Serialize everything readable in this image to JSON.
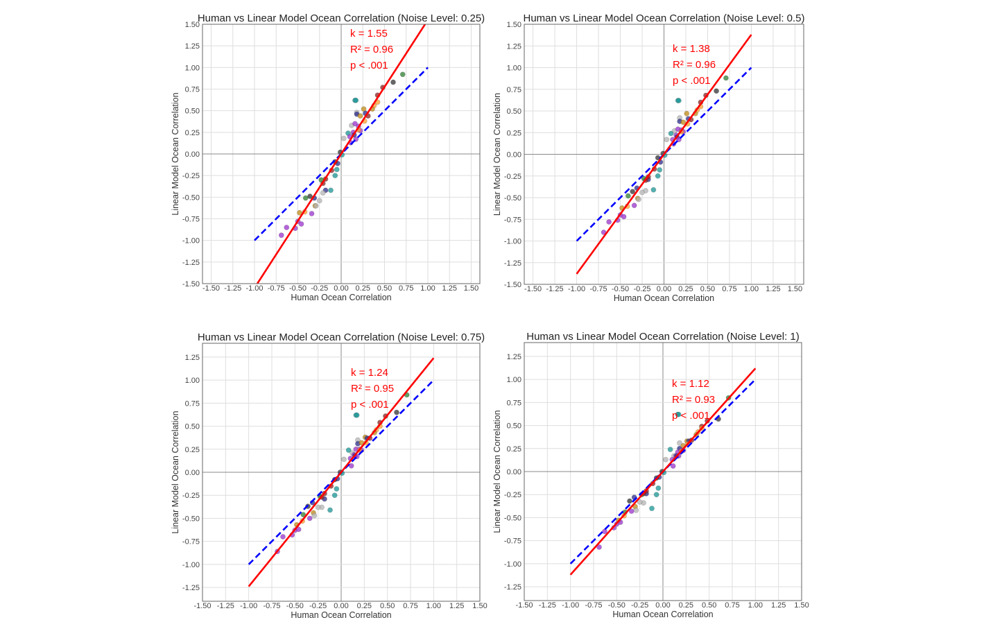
{
  "palette": {
    "purple": "#9932CC",
    "orange": "#FF9F2E",
    "goldenrod": "#C08A14",
    "teal": "#1A9696",
    "gray": "#B4B4B4",
    "navy": "#2A2A8A",
    "maroon": "#8B2020",
    "green": "#2E7D32",
    "black": "#333333",
    "fit": "#FF0000",
    "identity": "#0000FF"
  },
  "chart_data": [
    {
      "type": "scatter",
      "title": "Human vs Linear Model Ocean Correlation (Noise Level: 0.25)",
      "xlabel": "Human Ocean Correlation",
      "ylabel": "Linear Model Ocean Correlation",
      "xlim": [
        -1.6,
        1.6
      ],
      "ylim": [
        -1.5,
        1.5
      ],
      "grid": true,
      "xticks": [
        "-1.50",
        "-1.25",
        "-1.00",
        "-0.75",
        "-0.50",
        "-0.25",
        "0.00",
        "0.25",
        "0.50",
        "0.75",
        "1.00",
        "1.25",
        "1.50"
      ],
      "yticks": [
        "-1.50",
        "-1.25",
        "-1.00",
        "-0.75",
        "-0.50",
        "-0.25",
        "0.00",
        "0.25",
        "0.50",
        "0.75",
        "1.00",
        "1.25",
        "1.50"
      ],
      "annotations": [
        "k = 1.55",
        "R² = 0.96",
        "p < .001"
      ],
      "fit_slope": 1.55,
      "x": [
        0.71,
        0.6,
        0.48,
        0.42,
        0.42,
        0.38,
        0.36,
        0.16,
        0.17,
        0.18,
        0.18,
        0.26,
        0.22,
        0.28,
        0.31,
        0.27,
        0.12,
        0.16,
        0.2,
        0.22,
        0.2,
        0.08,
        0.14,
        0.15,
        0.1,
        0.03,
        0.17,
        0.11,
        -0.01,
        0.01,
        -0.04,
        -0.07,
        -0.05,
        -0.07,
        -0.11,
        -0.12,
        -0.18,
        -0.21,
        -0.18,
        -0.21,
        -0.23,
        -0.25,
        -0.3,
        -0.29,
        -0.31,
        -0.36,
        -0.41,
        -0.34,
        -0.42,
        -0.48,
        -0.5,
        -0.46,
        -0.53,
        -0.63,
        -0.69
      ],
      "y": [
        0.92,
        0.83,
        0.77,
        0.68,
        0.6,
        0.56,
        0.52,
        0.62,
        0.62,
        0.48,
        0.46,
        0.52,
        0.44,
        0.47,
        0.44,
        0.38,
        0.33,
        0.35,
        0.32,
        0.27,
        0.28,
        0.24,
        0.25,
        0.22,
        0.2,
        0.18,
        0.17,
        0.13,
        0.02,
        -0.01,
        -0.11,
        -0.09,
        -0.18,
        -0.25,
        -0.19,
        -0.42,
        -0.42,
        -0.45,
        -0.29,
        -0.34,
        -0.3,
        -0.54,
        -0.6,
        -0.6,
        -0.51,
        -0.49,
        -0.51,
        -0.69,
        -0.67,
        -0.68,
        -0.78,
        -0.81,
        -0.86,
        -0.85,
        -0.94
      ],
      "colors": [
        "green",
        "black",
        "maroon",
        "maroon",
        "orange",
        "orange",
        "goldenrod",
        "teal",
        "teal",
        "gray",
        "navy",
        "goldenrod",
        "goldenrod",
        "navy",
        "maroon",
        "orange",
        "gray",
        "purple",
        "purple",
        "purple",
        "orange",
        "teal",
        "purple",
        "navy",
        "purple",
        "gray",
        "purple",
        "purple",
        "black",
        "teal",
        "navy",
        "black",
        "teal",
        "teal",
        "maroon",
        "teal",
        "navy",
        "gray",
        "maroon",
        "maroon",
        "green",
        "gray",
        "goldenrod",
        "gray",
        "navy",
        "black",
        "green",
        "purple",
        "orange",
        "goldenrod",
        "purple",
        "purple",
        "purple",
        "purple",
        "purple"
      ]
    },
    {
      "type": "scatter",
      "title": "Human vs Linear Model Ocean Correlation (Noise Level: 0.5)",
      "xlabel": "Human Ocean Correlation",
      "ylabel": "Linear Model Ocean Correlation",
      "xlim": [
        -1.6,
        1.6
      ],
      "ylim": [
        -1.5,
        1.5
      ],
      "grid": true,
      "xticks": [
        "-1.50",
        "-1.25",
        "-1.00",
        "-0.75",
        "-0.50",
        "-0.25",
        "0.00",
        "0.25",
        "0.50",
        "0.75",
        "1.00",
        "1.25",
        "1.50"
      ],
      "yticks": [
        "-1.50",
        "-1.25",
        "-1.00",
        "-0.75",
        "-0.50",
        "-0.25",
        "0.00",
        "0.25",
        "0.50",
        "0.75",
        "1.00",
        "1.25",
        "1.50"
      ],
      "annotations": [
        "k = 1.38",
        "R² = 0.96",
        "p < .001"
      ],
      "fit_slope": 1.38,
      "x": [
        0.71,
        0.6,
        0.48,
        0.42,
        0.42,
        0.38,
        0.36,
        0.16,
        0.17,
        0.18,
        0.18,
        0.26,
        0.22,
        0.28,
        0.31,
        0.27,
        0.12,
        0.16,
        0.2,
        0.22,
        0.2,
        0.08,
        0.14,
        0.15,
        0.1,
        0.03,
        0.17,
        0.11,
        -0.01,
        0.01,
        -0.04,
        -0.07,
        -0.05,
        -0.07,
        -0.11,
        -0.12,
        -0.18,
        -0.21,
        -0.18,
        -0.21,
        -0.23,
        -0.25,
        -0.3,
        -0.29,
        -0.31,
        -0.36,
        -0.41,
        -0.34,
        -0.42,
        -0.48,
        -0.5,
        -0.46,
        -0.53,
        -0.63,
        -0.69
      ],
      "y": [
        0.88,
        0.73,
        0.68,
        0.6,
        0.55,
        0.51,
        0.47,
        0.62,
        0.62,
        0.42,
        0.38,
        0.47,
        0.37,
        0.41,
        0.4,
        0.35,
        0.27,
        0.29,
        0.28,
        0.26,
        0.26,
        0.24,
        0.22,
        0.2,
        0.17,
        0.17,
        0.17,
        0.12,
        0.01,
        -0.01,
        -0.09,
        -0.04,
        -0.18,
        -0.25,
        -0.17,
        -0.41,
        -0.29,
        -0.42,
        -0.26,
        -0.3,
        -0.28,
        -0.44,
        -0.51,
        -0.52,
        -0.39,
        -0.43,
        -0.48,
        -0.59,
        -0.6,
        -0.62,
        -0.7,
        -0.72,
        -0.76,
        -0.78,
        -0.9
      ],
      "colors": [
        "green",
        "black",
        "maroon",
        "maroon",
        "orange",
        "orange",
        "goldenrod",
        "teal",
        "teal",
        "gray",
        "navy",
        "goldenrod",
        "goldenrod",
        "navy",
        "maroon",
        "orange",
        "gray",
        "purple",
        "purple",
        "purple",
        "orange",
        "teal",
        "purple",
        "navy",
        "purple",
        "gray",
        "purple",
        "purple",
        "black",
        "teal",
        "navy",
        "black",
        "teal",
        "teal",
        "maroon",
        "teal",
        "navy",
        "gray",
        "maroon",
        "maroon",
        "green",
        "gray",
        "goldenrod",
        "gray",
        "navy",
        "black",
        "green",
        "purple",
        "orange",
        "goldenrod",
        "purple",
        "purple",
        "purple",
        "purple",
        "purple"
      ]
    },
    {
      "type": "scatter",
      "title": "Human vs Linear Model Ocean Correlation (Noise Level: 0.75)",
      "xlabel": "Human Ocean Correlation",
      "ylabel": "Linear Model Ocean Correlation",
      "xlim": [
        -1.5,
        1.5
      ],
      "ylim": [
        -1.4,
        1.4
      ],
      "grid": true,
      "xticks": [
        "-1.50",
        "-1.25",
        "-1.00",
        "-0.75",
        "-0.50",
        "-0.25",
        "0.00",
        "0.25",
        "0.50",
        "0.75",
        "1.00",
        "1.25",
        "1.50"
      ],
      "yticks": [
        "-1.25",
        "-1.00",
        "-0.75",
        "-0.50",
        "-0.25",
        "0.00",
        "0.25",
        "0.50",
        "0.75",
        "1.00",
        "1.25"
      ],
      "annotations": [
        "k = 1.24",
        "R² = 0.95",
        "p < .001"
      ],
      "fit_slope": 1.24,
      "x": [
        0.71,
        0.6,
        0.48,
        0.42,
        0.42,
        0.38,
        0.36,
        0.16,
        0.17,
        0.18,
        0.18,
        0.26,
        0.22,
        0.28,
        0.31,
        0.27,
        0.12,
        0.16,
        0.2,
        0.22,
        0.2,
        0.08,
        0.14,
        0.15,
        0.1,
        0.03,
        0.17,
        0.11,
        -0.01,
        0.01,
        -0.04,
        -0.07,
        -0.05,
        -0.07,
        -0.11,
        -0.12,
        -0.18,
        -0.21,
        -0.18,
        -0.21,
        -0.23,
        -0.25,
        -0.3,
        -0.29,
        -0.31,
        -0.36,
        -0.41,
        -0.34,
        -0.42,
        -0.48,
        -0.5,
        -0.46,
        -0.53,
        -0.63,
        -0.69
      ],
      "y": [
        0.84,
        0.65,
        0.61,
        0.54,
        0.5,
        0.46,
        0.43,
        0.62,
        0.62,
        0.35,
        0.31,
        0.38,
        0.32,
        0.37,
        0.37,
        0.32,
        0.21,
        0.25,
        0.25,
        0.24,
        0.24,
        0.24,
        0.19,
        0.18,
        0.15,
        0.14,
        0.17,
        0.07,
        0.0,
        -0.01,
        -0.07,
        -0.08,
        -0.18,
        -0.25,
        -0.15,
        -0.41,
        -0.29,
        -0.38,
        -0.23,
        -0.27,
        -0.26,
        -0.38,
        -0.44,
        -0.47,
        -0.33,
        -0.37,
        -0.46,
        -0.5,
        -0.53,
        -0.57,
        -0.63,
        -0.62,
        -0.68,
        -0.7,
        -0.86
      ],
      "colors": [
        "green",
        "black",
        "maroon",
        "maroon",
        "orange",
        "orange",
        "goldenrod",
        "teal",
        "teal",
        "gray",
        "navy",
        "goldenrod",
        "goldenrod",
        "navy",
        "maroon",
        "orange",
        "gray",
        "purple",
        "purple",
        "purple",
        "orange",
        "teal",
        "purple",
        "navy",
        "purple",
        "gray",
        "purple",
        "purple",
        "black",
        "teal",
        "navy",
        "black",
        "teal",
        "teal",
        "maroon",
        "teal",
        "navy",
        "gray",
        "maroon",
        "maroon",
        "green",
        "gray",
        "goldenrod",
        "gray",
        "navy",
        "black",
        "green",
        "purple",
        "orange",
        "goldenrod",
        "purple",
        "purple",
        "purple",
        "purple",
        "purple"
      ]
    },
    {
      "type": "scatter",
      "title": "Human vs Linear Model Ocean Correlation (Noise Level: 1)",
      "xlabel": "Human Ocean Correlation",
      "ylabel": "Linear Model Ocean Correlation",
      "xlim": [
        -1.5,
        1.5
      ],
      "ylim": [
        -1.4,
        1.4
      ],
      "grid": true,
      "xticks": [
        "-1.50",
        "-1.25",
        "-1.00",
        "-0.75",
        "-0.50",
        "-0.25",
        "0.00",
        "0.25",
        "0.50",
        "0.75",
        "1.00",
        "1.25",
        "1.50"
      ],
      "yticks": [
        "-1.25",
        "-1.00",
        "-0.75",
        "-0.50",
        "-0.25",
        "0.00",
        "0.25",
        "0.50",
        "0.75",
        "1.00",
        "1.25"
      ],
      "annotations": [
        "k = 1.12",
        "R² = 0.93",
        "p < .001"
      ],
      "fit_slope": 1.12,
      "x": [
        0.71,
        0.6,
        0.48,
        0.42,
        0.42,
        0.38,
        0.36,
        0.16,
        0.17,
        0.18,
        0.18,
        0.26,
        0.22,
        0.28,
        0.31,
        0.27,
        0.12,
        0.16,
        0.2,
        0.22,
        0.2,
        0.08,
        0.14,
        0.15,
        0.1,
        0.03,
        0.17,
        0.11,
        -0.01,
        0.01,
        -0.04,
        -0.07,
        -0.05,
        -0.07,
        -0.11,
        -0.12,
        -0.18,
        -0.21,
        -0.18,
        -0.21,
        -0.23,
        -0.25,
        -0.3,
        -0.29,
        -0.31,
        -0.36,
        -0.41,
        -0.34,
        -0.42,
        -0.48,
        -0.5,
        -0.46,
        -0.53,
        -0.63,
        -0.69
      ],
      "y": [
        0.8,
        0.57,
        0.55,
        0.49,
        0.47,
        0.43,
        0.4,
        0.62,
        0.62,
        0.31,
        0.25,
        0.33,
        0.28,
        0.33,
        0.34,
        0.3,
        0.17,
        0.21,
        0.23,
        0.23,
        0.22,
        0.24,
        0.17,
        0.17,
        0.13,
        0.13,
        0.17,
        0.06,
        0.0,
        -0.01,
        -0.06,
        -0.07,
        -0.18,
        -0.25,
        -0.13,
        -0.4,
        -0.24,
        -0.34,
        -0.21,
        -0.24,
        -0.25,
        -0.33,
        -0.38,
        -0.42,
        -0.28,
        -0.32,
        -0.44,
        -0.43,
        -0.48,
        -0.53,
        -0.57,
        -0.55,
        -0.61,
        -0.65,
        -0.82
      ],
      "colors": [
        "green",
        "black",
        "maroon",
        "maroon",
        "orange",
        "orange",
        "goldenrod",
        "teal",
        "teal",
        "gray",
        "navy",
        "goldenrod",
        "goldenrod",
        "navy",
        "maroon",
        "orange",
        "gray",
        "purple",
        "purple",
        "purple",
        "orange",
        "teal",
        "purple",
        "navy",
        "purple",
        "gray",
        "purple",
        "purple",
        "black",
        "teal",
        "navy",
        "black",
        "teal",
        "teal",
        "maroon",
        "teal",
        "navy",
        "gray",
        "maroon",
        "maroon",
        "green",
        "gray",
        "goldenrod",
        "gray",
        "navy",
        "black",
        "green",
        "purple",
        "orange",
        "goldenrod",
        "purple",
        "purple",
        "purple",
        "purple",
        "purple"
      ]
    }
  ]
}
